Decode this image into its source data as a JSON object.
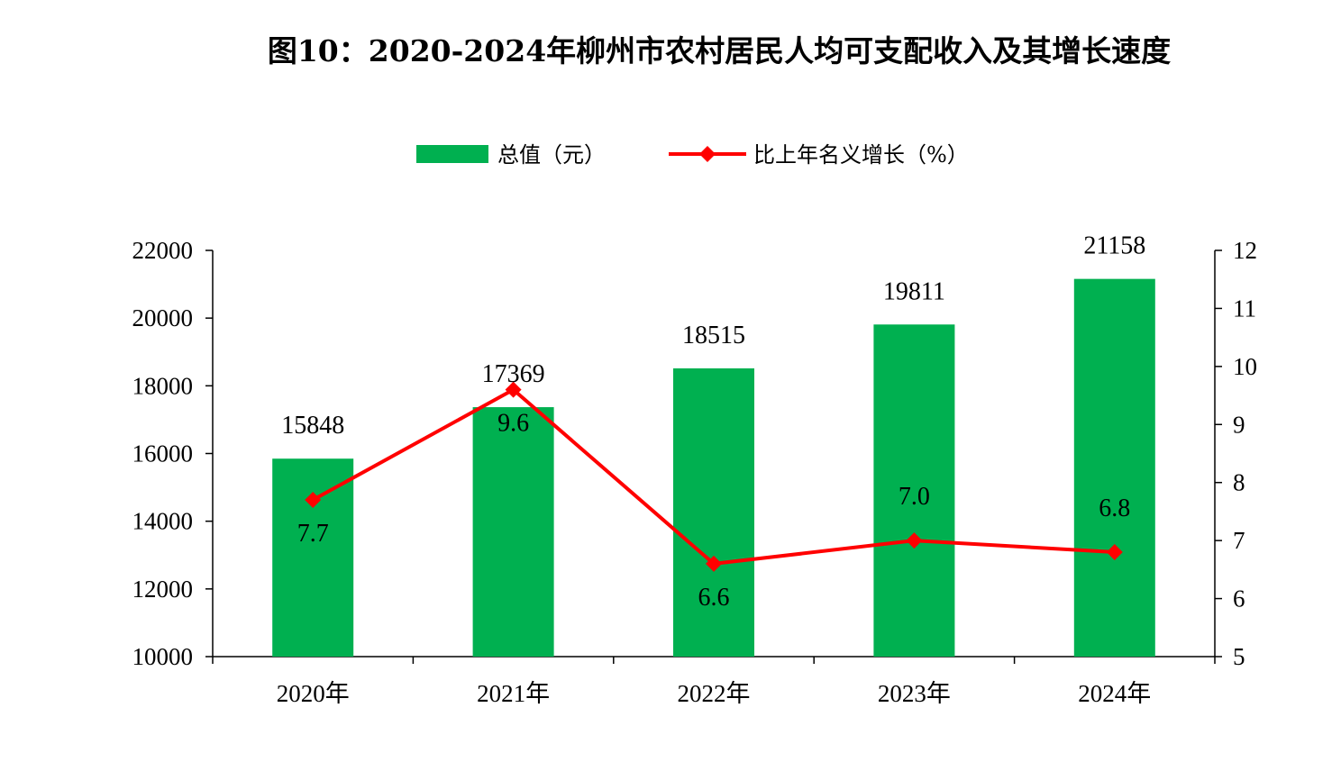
{
  "chart_data": {
    "type": "bar+line",
    "title": "图10：2020-2024年柳州市农村居民人均可支配收入及其增长速度",
    "categories": [
      "2020年",
      "2021年",
      "2022年",
      "2023年",
      "2024年"
    ],
    "series": [
      {
        "name": "总值（元）",
        "type": "bar",
        "axis": "left",
        "values": [
          15848,
          17369,
          18515,
          19811,
          21158
        ],
        "labels": [
          "15848",
          "17369",
          "18515",
          "19811",
          "21158"
        ],
        "color": "#00b050"
      },
      {
        "name": "比上年名义增长（%）",
        "type": "line",
        "axis": "right",
        "values": [
          7.7,
          9.6,
          6.6,
          7.0,
          6.8
        ],
        "labels": [
          "7.7",
          "9.6",
          "6.6",
          "7.0",
          "6.8"
        ],
        "color": "#ff0000"
      }
    ],
    "y_left": {
      "range": [
        10000,
        22000
      ],
      "ticks": [
        10000,
        12000,
        14000,
        16000,
        18000,
        20000,
        22000
      ]
    },
    "y_right": {
      "range": [
        5,
        12
      ],
      "ticks": [
        5,
        6,
        7,
        8,
        9,
        10,
        11,
        12
      ]
    },
    "legend_position": "top",
    "grid": false
  }
}
